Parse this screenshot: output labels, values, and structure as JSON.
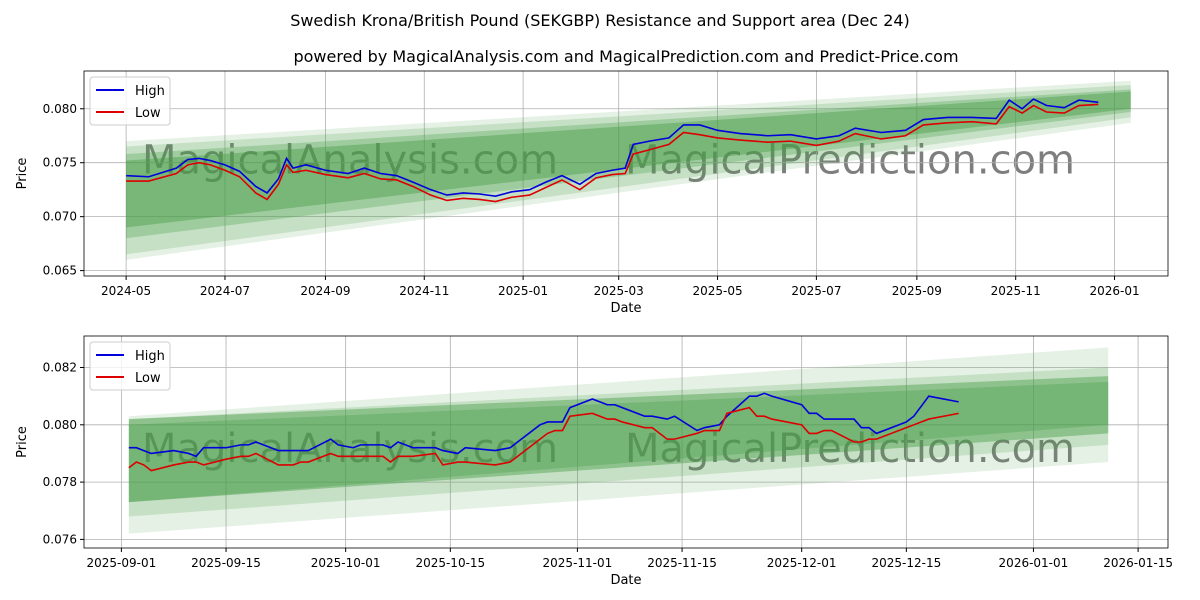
{
  "title": "Swedish Krona/British Pound (SEKGBP) Resistance and Support area (Dec 24)",
  "subtitle": "powered by MagicalAnalysis.com and MagicalPrediction.com and Predict-Price.com",
  "watermarks": [
    "MagicalAnalysis.com",
    "MagicalPrediction.com"
  ],
  "colors": {
    "high": "#0000dd",
    "low": "#dd0000",
    "band": "#4a9e4a"
  },
  "chart_data": [
    {
      "type": "line",
      "xlabel": "Date",
      "ylabel": "Price",
      "ylim": [
        0.0645,
        0.0835
      ],
      "xlim": [
        "2024-04-05",
        "2026-02-03"
      ],
      "xticks": [
        "2024-05",
        "2024-07",
        "2024-09",
        "2024-11",
        "2025-01",
        "2025-03",
        "2025-05",
        "2025-07",
        "2025-09",
        "2025-11",
        "2026-01"
      ],
      "yticks": [
        "0.065",
        "0.070",
        "0.075",
        "0.080"
      ],
      "legend": [
        "High",
        "Low"
      ],
      "legend_loc": "top-left",
      "grid": true,
      "bands": [
        {
          "x": [
            "2024-05-01",
            "2026-01-11"
          ],
          "lo": [
            0.066,
            0.0787
          ],
          "hi": [
            0.077,
            0.0826
          ],
          "alpha": 0.15
        },
        {
          "x": [
            "2024-05-01",
            "2026-01-11"
          ],
          "lo": [
            0.0665,
            0.0792
          ],
          "hi": [
            0.0765,
            0.0822
          ],
          "alpha": 0.2
        },
        {
          "x": [
            "2024-05-01",
            "2026-01-11"
          ],
          "lo": [
            0.068,
            0.0797
          ],
          "hi": [
            0.0758,
            0.0818
          ],
          "alpha": 0.3
        },
        {
          "x": [
            "2024-05-01",
            "2026-01-11"
          ],
          "lo": [
            0.069,
            0.08
          ],
          "hi": [
            0.0752,
            0.0816
          ],
          "alpha": 0.45
        }
      ],
      "x": [
        "2024-05-01",
        "2024-05-15",
        "2024-06-01",
        "2024-06-08",
        "2024-06-15",
        "2024-06-22",
        "2024-07-01",
        "2024-07-10",
        "2024-07-20",
        "2024-07-27",
        "2024-08-03",
        "2024-08-08",
        "2024-08-12",
        "2024-08-20",
        "2024-09-01",
        "2024-09-15",
        "2024-09-25",
        "2024-10-05",
        "2024-10-15",
        "2024-10-25",
        "2024-11-05",
        "2024-11-15",
        "2024-11-25",
        "2024-12-05",
        "2024-12-15",
        "2024-12-25",
        "2025-01-05",
        "2025-01-15",
        "2025-01-25",
        "2025-02-05",
        "2025-02-15",
        "2025-02-25",
        "2025-03-05",
        "2025-03-10",
        "2025-03-20",
        "2025-04-01",
        "2025-04-10",
        "2025-04-20",
        "2025-05-01",
        "2025-05-15",
        "2025-06-01",
        "2025-06-15",
        "2025-07-01",
        "2025-07-15",
        "2025-07-25",
        "2025-08-10",
        "2025-08-25",
        "2025-09-05",
        "2025-09-20",
        "2025-10-05",
        "2025-10-20",
        "2025-10-28",
        "2025-11-05",
        "2025-11-12",
        "2025-11-20",
        "2025-12-01",
        "2025-12-10",
        "2025-12-22"
      ],
      "series": [
        {
          "name": "High",
          "values": [
            0.0738,
            0.0737,
            0.0745,
            0.0753,
            0.0754,
            0.0752,
            0.0748,
            0.0742,
            0.0728,
            0.0722,
            0.0735,
            0.0754,
            0.0745,
            0.0748,
            0.0743,
            0.074,
            0.0745,
            0.074,
            0.0738,
            0.0732,
            0.0725,
            0.072,
            0.0722,
            0.0721,
            0.0719,
            0.0723,
            0.0725,
            0.0732,
            0.0738,
            0.073,
            0.074,
            0.0743,
            0.0745,
            0.0767,
            0.077,
            0.0773,
            0.0785,
            0.0785,
            0.078,
            0.0777,
            0.0775,
            0.0776,
            0.0772,
            0.0775,
            0.0782,
            0.0778,
            0.078,
            0.079,
            0.0792,
            0.0792,
            0.0791,
            0.0808,
            0.08,
            0.0809,
            0.0803,
            0.0801,
            0.0808,
            0.0806
          ]
        },
        {
          "name": "Low",
          "values": [
            0.0733,
            0.0733,
            0.074,
            0.0748,
            0.075,
            0.0748,
            0.0743,
            0.0737,
            0.0722,
            0.0716,
            0.073,
            0.0748,
            0.0741,
            0.0743,
            0.0739,
            0.0736,
            0.074,
            0.0735,
            0.0734,
            0.0728,
            0.072,
            0.0715,
            0.0717,
            0.0716,
            0.0714,
            0.0718,
            0.072,
            0.0727,
            0.0734,
            0.0725,
            0.0736,
            0.0739,
            0.074,
            0.0758,
            0.0762,
            0.0767,
            0.0778,
            0.0776,
            0.0773,
            0.0771,
            0.0769,
            0.077,
            0.0766,
            0.077,
            0.0777,
            0.0772,
            0.0775,
            0.0785,
            0.0787,
            0.0788,
            0.0786,
            0.0802,
            0.0796,
            0.0803,
            0.0797,
            0.0796,
            0.0803,
            0.0804
          ]
        }
      ]
    },
    {
      "type": "line",
      "xlabel": "Date",
      "ylabel": "Price",
      "ylim": [
        0.0757,
        0.0831
      ],
      "xlim": [
        "2025-08-27",
        "2026-01-19"
      ],
      "xticks": [
        "2025-09-01",
        "2025-09-15",
        "2025-10-01",
        "2025-10-15",
        "2025-11-01",
        "2025-11-15",
        "2025-12-01",
        "2025-12-15",
        "2026-01-01",
        "2026-01-15"
      ],
      "yticks": [
        "0.076",
        "0.078",
        "0.080",
        "0.082"
      ],
      "legend": [
        "High",
        "Low"
      ],
      "legend_loc": "top-left",
      "grid": true,
      "bands": [
        {
          "x": [
            "2025-09-02",
            "2026-01-11"
          ],
          "lo": [
            0.0762,
            0.0787
          ],
          "hi": [
            0.0803,
            0.0827
          ],
          "alpha": 0.15
        },
        {
          "x": [
            "2025-09-02",
            "2026-01-11"
          ],
          "lo": [
            0.0768,
            0.0793
          ],
          "hi": [
            0.0802,
            0.082
          ],
          "alpha": 0.2
        },
        {
          "x": [
            "2025-09-02",
            "2026-01-11"
          ],
          "lo": [
            0.0773,
            0.0797
          ],
          "hi": [
            0.0802,
            0.0817
          ],
          "alpha": 0.45
        },
        {
          "x": [
            "2025-09-02",
            "2026-01-11"
          ],
          "lo": [
            0.0773,
            0.08
          ],
          "hi": [
            0.08,
            0.0815
          ],
          "alpha": 0.35
        }
      ],
      "x": [
        "2025-09-02",
        "2025-09-03",
        "2025-09-04",
        "2025-09-05",
        "2025-09-08",
        "2025-09-10",
        "2025-09-11",
        "2025-09-12",
        "2025-09-15",
        "2025-09-17",
        "2025-09-18",
        "2025-09-19",
        "2025-09-22",
        "2025-09-24",
        "2025-09-25",
        "2025-09-26",
        "2025-09-29",
        "2025-09-30",
        "2025-10-02",
        "2025-10-03",
        "2025-10-06",
        "2025-10-07",
        "2025-10-08",
        "2025-10-10",
        "2025-10-13",
        "2025-10-14",
        "2025-10-16",
        "2025-10-17",
        "2025-10-21",
        "2025-10-23",
        "2025-10-24",
        "2025-10-27",
        "2025-10-28",
        "2025-10-29",
        "2025-10-30",
        "2025-10-31",
        "2025-11-03",
        "2025-11-05",
        "2025-11-06",
        "2025-11-07",
        "2025-11-10",
        "2025-11-11",
        "2025-11-13",
        "2025-11-14",
        "2025-11-17",
        "2025-11-18",
        "2025-11-20",
        "2025-11-21",
        "2025-11-24",
        "2025-11-25",
        "2025-11-26",
        "2025-11-27",
        "2025-12-01",
        "2025-12-02",
        "2025-12-03",
        "2025-12-04",
        "2025-12-05",
        "2025-12-08",
        "2025-12-09",
        "2025-12-10",
        "2025-12-11",
        "2025-12-15",
        "2025-12-16",
        "2025-12-18",
        "2025-12-22"
      ],
      "series": [
        {
          "name": "High",
          "values": [
            0.0792,
            0.0792,
            0.0791,
            0.079,
            0.0791,
            0.079,
            0.0789,
            0.0792,
            0.0792,
            0.0793,
            0.0793,
            0.0794,
            0.0791,
            0.0791,
            0.0791,
            0.0791,
            0.0795,
            0.0793,
            0.0792,
            0.0793,
            0.0793,
            0.0792,
            0.0794,
            0.0792,
            0.0792,
            0.0791,
            0.079,
            0.0792,
            0.0791,
            0.0792,
            0.0794,
            0.08,
            0.0801,
            0.0801,
            0.0801,
            0.0806,
            0.0809,
            0.0807,
            0.0807,
            0.0806,
            0.0803,
            0.0803,
            0.0802,
            0.0803,
            0.0798,
            0.0799,
            0.08,
            0.0803,
            0.081,
            0.081,
            0.0811,
            0.081,
            0.0807,
            0.0804,
            0.0804,
            0.0802,
            0.0802,
            0.0802,
            0.0799,
            0.0799,
            0.0797,
            0.0801,
            0.0803,
            0.081,
            0.0808
          ]
        },
        {
          "name": "Low",
          "values": [
            0.0785,
            0.0787,
            0.0786,
            0.0784,
            0.0786,
            0.0787,
            0.0787,
            0.0786,
            0.0788,
            0.0789,
            0.0789,
            0.079,
            0.0786,
            0.0786,
            0.0787,
            0.0787,
            0.079,
            0.0789,
            0.0789,
            0.0789,
            0.0789,
            0.0787,
            0.0789,
            0.0789,
            0.079,
            0.0786,
            0.0787,
            0.0787,
            0.0786,
            0.0787,
            0.0789,
            0.0795,
            0.0797,
            0.0798,
            0.0798,
            0.0803,
            0.0804,
            0.0802,
            0.0802,
            0.0801,
            0.0799,
            0.0799,
            0.0795,
            0.0795,
            0.0797,
            0.0798,
            0.0798,
            0.0804,
            0.0806,
            0.0803,
            0.0803,
            0.0802,
            0.08,
            0.0797,
            0.0797,
            0.0798,
            0.0798,
            0.0794,
            0.0794,
            0.0795,
            0.0795,
            0.0799,
            0.08,
            0.0802,
            0.0804
          ]
        }
      ]
    }
  ]
}
